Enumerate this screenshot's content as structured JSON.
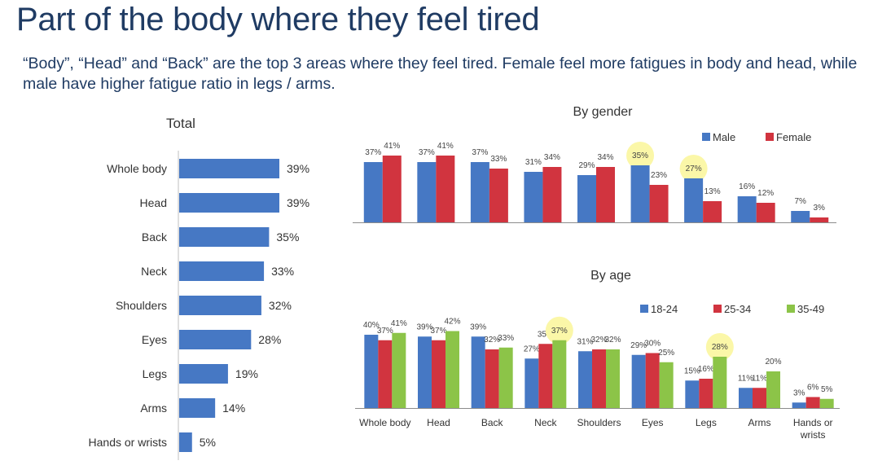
{
  "title": "Part of the body where they feel tired",
  "subtitle": "“Body”, “Head” and “Back” are the top 3 areas where they feel tired. Female feel more fatigues in body and head, while male have higher fatigue ratio in legs / arms.",
  "colors": {
    "blue": "#4678c4",
    "red": "#d1343f",
    "green": "#8cc448",
    "highlight": "#fbf7a8",
    "title": "#1f3b63"
  },
  "chart_data": [
    {
      "type": "bar",
      "orientation": "horizontal",
      "title": "Total",
      "categories": [
        "Whole body",
        "Head",
        "Back",
        "Neck",
        "Shoulders",
        "Eyes",
        "Legs",
        "Arms",
        "Hands or wrists"
      ],
      "value_labels": [
        "39%",
        "39%",
        "35%",
        "33%",
        "32%",
        "28%",
        "19%",
        "14%",
        "5%"
      ],
      "values": [
        39,
        39,
        35,
        33,
        32,
        28,
        19,
        14,
        5
      ],
      "xlim": [
        0,
        45
      ]
    },
    {
      "type": "bar",
      "title": "By gender",
      "categories": [
        "Whole body",
        "Head",
        "Back",
        "Neck",
        "Shoulders",
        "Eyes",
        "Legs",
        "Arms",
        "Hands or wrists"
      ],
      "series": [
        {
          "name": "Male",
          "color": "#4678c4",
          "values": [
            37,
            37,
            37,
            31,
            29,
            35,
            27,
            16,
            7
          ],
          "labels": [
            "37%",
            "37%",
            "37%",
            "31%",
            "29%",
            "35%",
            "27%",
            "16%",
            "7%"
          ]
        },
        {
          "name": "Female",
          "color": "#d1343f",
          "values": [
            41,
            41,
            33,
            34,
            34,
            23,
            13,
            12,
            3
          ],
          "labels": [
            "41%",
            "41%",
            "33%",
            "34%",
            "34%",
            "23%",
            "13%",
            "12%",
            "3%"
          ]
        }
      ],
      "highlighted": [
        {
          "series": 0,
          "index": 5
        },
        {
          "series": 0,
          "index": 6
        }
      ],
      "ylim": [
        0,
        45
      ],
      "legend": "top-right"
    },
    {
      "type": "bar",
      "title": "By age",
      "categories": [
        "Whole body",
        "Head",
        "Back",
        "Neck",
        "Shoulders",
        "Eyes",
        "Legs",
        "Arms",
        "Hands or wrists"
      ],
      "series": [
        {
          "name": "18-24",
          "color": "#4678c4",
          "values": [
            40,
            39,
            39,
            27,
            31,
            29,
            15,
            11,
            3
          ],
          "labels": [
            "40%",
            "39%",
            "39%",
            "27%",
            "31%",
            "29%",
            "15%",
            "11%",
            "3%"
          ]
        },
        {
          "name": "25-34",
          "color": "#d1343f",
          "values": [
            37,
            37,
            32,
            35,
            32,
            30,
            16,
            11,
            6
          ],
          "labels": [
            "37%",
            "37%",
            "32%",
            "35%",
            "32%",
            "30%",
            "16%",
            "11%",
            "6%"
          ]
        },
        {
          "name": "35-49",
          "color": "#8cc448",
          "values": [
            41,
            42,
            33,
            37,
            32,
            25,
            28,
            20,
            5
          ],
          "labels": [
            "41%",
            "42%",
            "33%",
            "37%",
            "32%",
            "25%",
            "28%",
            "20%",
            "5%"
          ]
        }
      ],
      "highlighted": [
        {
          "series": 2,
          "index": 3
        },
        {
          "series": 2,
          "index": 6
        }
      ],
      "ylim": [
        0,
        45
      ],
      "legend": "top-right"
    }
  ]
}
